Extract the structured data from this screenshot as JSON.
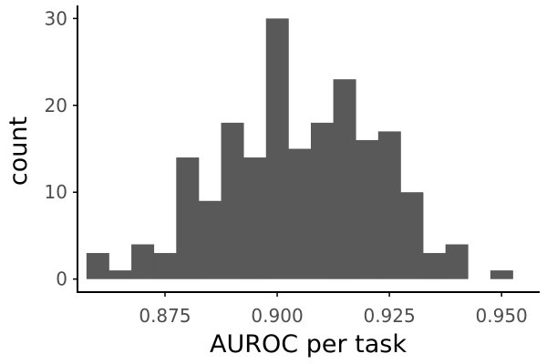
{
  "chart_data": {
    "type": "bar",
    "subtype": "histogram",
    "xlabel": "AUROC per task",
    "ylabel": "count",
    "bin_width": 0.005,
    "bins": [
      {
        "x0": 0.8575,
        "x1": 0.8625,
        "count": 3
      },
      {
        "x0": 0.8625,
        "x1": 0.8675,
        "count": 1
      },
      {
        "x0": 0.8675,
        "x1": 0.8725,
        "count": 4
      },
      {
        "x0": 0.8725,
        "x1": 0.8775,
        "count": 3
      },
      {
        "x0": 0.8775,
        "x1": 0.8825,
        "count": 14
      },
      {
        "x0": 0.8825,
        "x1": 0.8875,
        "count": 9
      },
      {
        "x0": 0.8875,
        "x1": 0.8925,
        "count": 18
      },
      {
        "x0": 0.8925,
        "x1": 0.8975,
        "count": 14
      },
      {
        "x0": 0.8975,
        "x1": 0.9025,
        "count": 30
      },
      {
        "x0": 0.9025,
        "x1": 0.9075,
        "count": 15
      },
      {
        "x0": 0.9075,
        "x1": 0.9125,
        "count": 18
      },
      {
        "x0": 0.9125,
        "x1": 0.9175,
        "count": 23
      },
      {
        "x0": 0.9175,
        "x1": 0.9225,
        "count": 16
      },
      {
        "x0": 0.9225,
        "x1": 0.9275,
        "count": 17
      },
      {
        "x0": 0.9275,
        "x1": 0.9325,
        "count": 10
      },
      {
        "x0": 0.9325,
        "x1": 0.9375,
        "count": 3
      },
      {
        "x0": 0.9375,
        "x1": 0.9425,
        "count": 4
      },
      {
        "x0": 0.9425,
        "x1": 0.9475,
        "count": 0
      },
      {
        "x0": 0.9475,
        "x1": 0.9525,
        "count": 1
      }
    ],
    "xlim": [
      0.8555,
      0.9585
    ],
    "ylim": [
      -1.5,
      31.5
    ],
    "x_ticks": [
      0.875,
      0.9,
      0.925,
      0.95
    ],
    "x_tick_labels": [
      "0.875",
      "0.900",
      "0.925",
      "0.950"
    ],
    "y_ticks": [
      0,
      10,
      20,
      30
    ],
    "y_tick_labels": [
      "0",
      "10",
      "20",
      "30"
    ],
    "grid": false,
    "legend": "none",
    "colors": {
      "bar": "#595959",
      "axis": "#000000",
      "tick_text": "#4d4d4d",
      "title_text": "#000000"
    }
  }
}
